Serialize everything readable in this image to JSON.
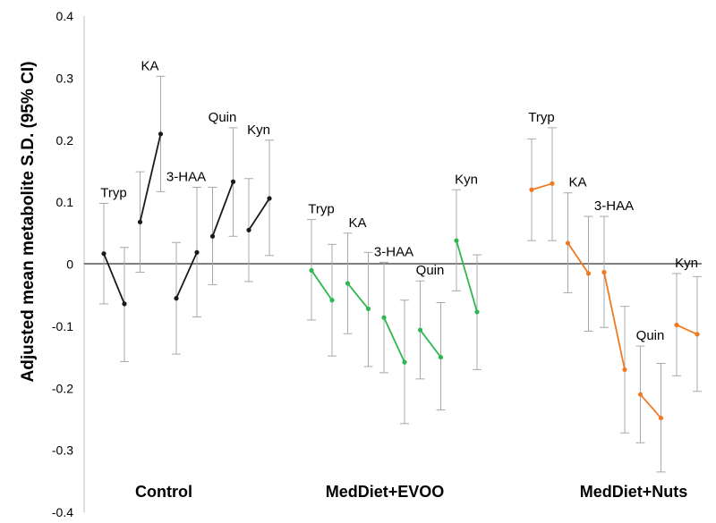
{
  "chart_data": {
    "type": "line",
    "ylabel": "Adjusted mean metabolite S.D. (95% CI)",
    "ylim": [
      -0.4,
      0.4
    ],
    "yticks": [
      "0.4",
      "0.3",
      "0.2",
      "0.1",
      "0",
      "-0.1",
      "-0.2",
      "-0.3",
      "-0.4"
    ],
    "groups": [
      {
        "name": "Control",
        "color": "#1a1a1a",
        "metabolites": [
          {
            "label": "Tryp",
            "values": [
              0.017,
              -0.064
            ],
            "ci": [
              [
                -0.064,
                0.098
              ],
              [
                -0.157,
                0.027
              ]
            ]
          },
          {
            "label": "KA",
            "values": [
              0.068,
              0.21
            ],
            "ci": [
              [
                -0.013,
                0.149
              ],
              [
                0.117,
                0.303
              ]
            ]
          },
          {
            "label": "3-HAA",
            "values": [
              -0.055,
              0.019
            ],
            "ci": [
              [
                -0.145,
                0.035
              ],
              [
                -0.085,
                0.124
              ]
            ]
          },
          {
            "label": "Quin",
            "values": [
              0.045,
              0.133
            ],
            "ci": [
              [
                -0.033,
                0.124
              ],
              [
                0.045,
                0.22
              ]
            ]
          },
          {
            "label": "Kyn",
            "values": [
              0.055,
              0.106
            ],
            "ci": [
              [
                -0.028,
                0.138
              ],
              [
                0.014,
                0.2
              ]
            ]
          }
        ]
      },
      {
        "name": "MedDiet+EVOO",
        "color": "#2eb84f",
        "metabolites": [
          {
            "label": "Tryp",
            "values": [
              -0.01,
              -0.058
            ],
            "ci": [
              [
                -0.09,
                0.072
              ],
              [
                -0.148,
                0.032
              ]
            ]
          },
          {
            "label": "KA",
            "values": [
              -0.031,
              -0.072
            ],
            "ci": [
              [
                -0.112,
                0.05
              ],
              [
                -0.165,
                0.019
              ]
            ]
          },
          {
            "label": "3-HAA",
            "values": [
              -0.086,
              -0.158
            ],
            "ci": [
              [
                -0.175,
                0.003
              ],
              [
                -0.257,
                -0.058
              ]
            ]
          },
          {
            "label": "Quin",
            "values": [
              -0.106,
              -0.15
            ],
            "ci": [
              [
                -0.185,
                -0.027
              ],
              [
                -0.235,
                -0.062
              ]
            ]
          },
          {
            "label": "Kyn",
            "values": [
              0.038,
              -0.077
            ],
            "ci": [
              [
                -0.043,
                0.12
              ],
              [
                -0.17,
                0.015
              ]
            ]
          }
        ]
      },
      {
        "name": "MedDiet+Nuts",
        "color": "#f07a22",
        "metabolites": [
          {
            "label": "Tryp",
            "values": [
              0.12,
              0.13
            ],
            "ci": [
              [
                0.038,
                0.202
              ],
              [
                0.038,
                0.22
              ]
            ]
          },
          {
            "label": "KA",
            "values": [
              0.034,
              -0.015
            ],
            "ci": [
              [
                -0.046,
                0.115
              ],
              [
                -0.108,
                0.077
              ]
            ]
          },
          {
            "label": "3-HAA",
            "values": [
              -0.013,
              -0.17
            ],
            "ci": [
              [
                -0.102,
                0.077
              ],
              [
                -0.272,
                -0.068
              ]
            ]
          },
          {
            "label": "Quin",
            "values": [
              -0.21,
              -0.248
            ],
            "ci": [
              [
                -0.288,
                -0.132
              ],
              [
                -0.335,
                -0.16
              ]
            ]
          },
          {
            "label": "Kyn",
            "values": [
              -0.098,
              -0.113
            ],
            "ci": [
              [
                -0.18,
                -0.015
              ],
              [
                -0.205,
                -0.02
              ]
            ]
          }
        ]
      }
    ]
  }
}
